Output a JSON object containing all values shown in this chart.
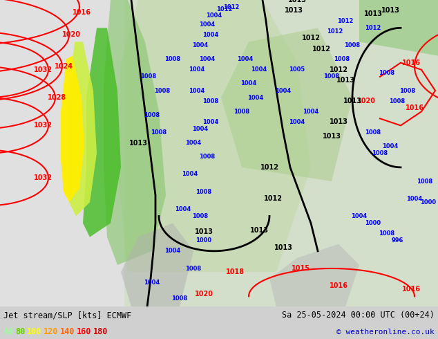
{
  "title_left": "Jet stream/SLP [kts] ECMWF",
  "title_right": "Sa 25-05-2024 00:00 UTC (00+24)",
  "copyright": "© weatheronline.co.uk",
  "legend_values": [
    "60",
    "80",
    "100",
    "120",
    "140",
    "160",
    "180"
  ],
  "legend_colors": [
    "#99ff99",
    "#66cc00",
    "#ffff00",
    "#ff9900",
    "#ff6600",
    "#ff0000",
    "#cc0000"
  ],
  "bg_color": "#d0d0d0",
  "map_bg_color": "#e8e8e8",
  "bottom_bar_color": "#ffffff",
  "bottom_text_color": "#000000",
  "figsize": [
    6.34,
    4.9
  ],
  "dpi": 100
}
